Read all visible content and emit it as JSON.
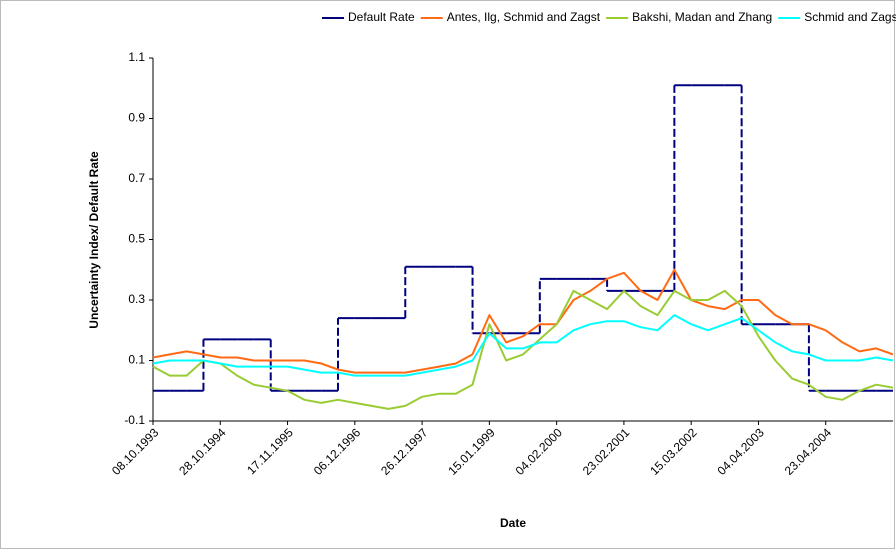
{
  "chart_data": {
    "type": "line",
    "x_label": "Date",
    "y_label": "Uncertainty Index/ Default Rate",
    "categories": [
      "08.10.1993",
      null,
      null,
      null,
      "28.10.1994",
      null,
      null,
      null,
      "17.11.1995",
      null,
      null,
      null,
      "06.12.1996",
      null,
      null,
      null,
      "26.12.1997",
      null,
      null,
      null,
      "15.01.1999",
      null,
      null,
      null,
      "04.02.2000",
      null,
      null,
      null,
      "23.02.2001",
      null,
      null,
      null,
      "15.03.2002",
      null,
      null,
      null,
      "04.04.2003",
      null,
      null,
      null,
      "23.04.2004",
      null,
      null,
      null,
      null
    ],
    "series": [
      {
        "name": "Default Rate",
        "color": "#000080",
        "step": true,
        "values": [
          0,
          0,
          0,
          0.17,
          0.17,
          0.17,
          0.17,
          0,
          0,
          0,
          0,
          0.24,
          0.24,
          0.24,
          0.24,
          0.41,
          0.41,
          0.41,
          0.41,
          0.19,
          0.19,
          0.19,
          0.19,
          0.37,
          0.37,
          0.37,
          0.37,
          0.33,
          0.33,
          0.33,
          0.33,
          1.01,
          1.01,
          1.01,
          1.01,
          0.22,
          0.22,
          0.22,
          0.22,
          0,
          0,
          0,
          0,
          0,
          0
        ]
      },
      {
        "name": "Antes, Ilg, Schmid and Zagst",
        "color": "#ff6a13",
        "values": [
          0.11,
          0.12,
          0.13,
          0.12,
          0.11,
          0.11,
          0.1,
          0.1,
          0.1,
          0.1,
          0.09,
          0.07,
          0.06,
          0.06,
          0.06,
          0.06,
          0.07,
          0.08,
          0.09,
          0.12,
          0.25,
          0.16,
          0.18,
          0.22,
          0.22,
          0.3,
          0.33,
          0.37,
          0.39,
          0.33,
          0.3,
          0.4,
          0.3,
          0.28,
          0.27,
          0.3,
          0.3,
          0.25,
          0.22,
          0.22,
          0.2,
          0.16,
          0.13,
          0.14,
          0.12
        ]
      },
      {
        "name": "Bakshi, Madan and Zhang",
        "color": "#99cc33",
        "values": [
          0.08,
          0.05,
          0.05,
          0.1,
          0.09,
          0.05,
          0.02,
          0.01,
          0.0,
          -0.03,
          -0.04,
          -0.03,
          -0.04,
          -0.05,
          -0.06,
          -0.05,
          -0.02,
          -0.01,
          -0.01,
          0.02,
          0.22,
          0.1,
          0.12,
          0.17,
          0.22,
          0.33,
          0.3,
          0.27,
          0.33,
          0.28,
          0.25,
          0.33,
          0.3,
          0.3,
          0.33,
          0.28,
          0.18,
          0.1,
          0.04,
          0.02,
          -0.02,
          -0.03,
          0.0,
          0.02,
          0.01
        ]
      },
      {
        "name": "Schmid and Zagst",
        "color": "#00ffff",
        "values": [
          0.09,
          0.1,
          0.1,
          0.1,
          0.09,
          0.08,
          0.08,
          0.08,
          0.08,
          0.07,
          0.06,
          0.06,
          0.05,
          0.05,
          0.05,
          0.05,
          0.06,
          0.07,
          0.08,
          0.1,
          0.19,
          0.14,
          0.14,
          0.16,
          0.16,
          0.2,
          0.22,
          0.23,
          0.23,
          0.21,
          0.2,
          0.25,
          0.22,
          0.2,
          0.22,
          0.24,
          0.2,
          0.16,
          0.13,
          0.12,
          0.1,
          0.1,
          0.1,
          0.11,
          0.1
        ]
      }
    ],
    "ylim": [
      -0.1,
      1.1
    ],
    "yticks": [
      -0.1,
      0.1,
      0.3,
      0.5,
      0.7,
      0.9,
      1.1
    ],
    "grid": false,
    "legend": "top"
  }
}
